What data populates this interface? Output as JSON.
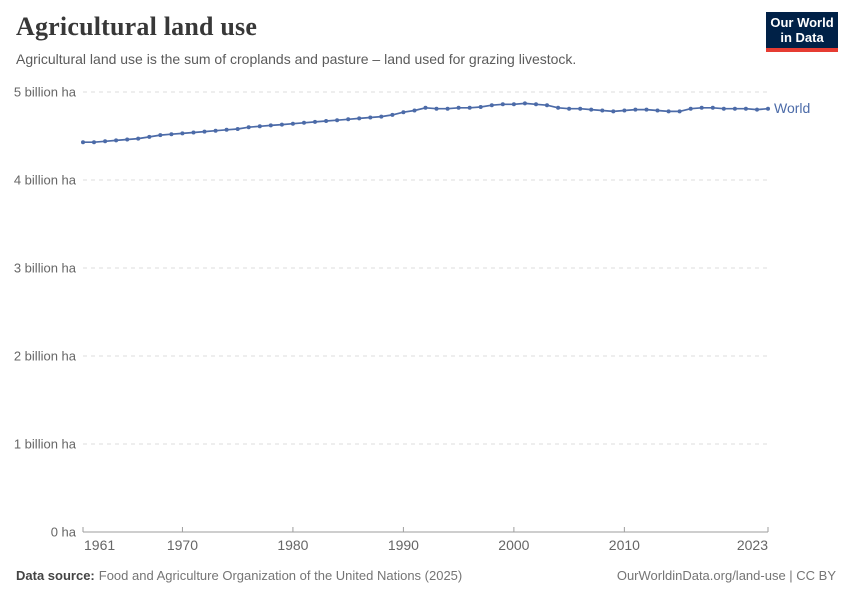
{
  "header": {
    "title": "Agricultural land use",
    "subtitle": "Agricultural land use is the sum of croplands and pasture – land used for grazing livestock.",
    "logo": {
      "line1": "Our World",
      "line2": "in Data",
      "bg_color": "#002147",
      "stripe_color": "#e63c32"
    }
  },
  "chart_data": {
    "type": "line",
    "title": "Agricultural land use",
    "xlabel": "",
    "ylabel": "",
    "unit": "billion ha",
    "ylim": [
      0,
      5
    ],
    "grid": "horizontal-dashed",
    "legend_position": "end-of-line",
    "x": [
      1961,
      1962,
      1963,
      1964,
      1965,
      1966,
      1967,
      1968,
      1969,
      1970,
      1971,
      1972,
      1973,
      1974,
      1975,
      1976,
      1977,
      1978,
      1979,
      1980,
      1981,
      1982,
      1983,
      1984,
      1985,
      1986,
      1987,
      1988,
      1989,
      1990,
      1991,
      1992,
      1993,
      1994,
      1995,
      1996,
      1997,
      1998,
      1999,
      2000,
      2001,
      2002,
      2003,
      2004,
      2005,
      2006,
      2007,
      2008,
      2009,
      2010,
      2011,
      2012,
      2013,
      2014,
      2015,
      2016,
      2017,
      2018,
      2019,
      2020,
      2021,
      2022,
      2023
    ],
    "series": [
      {
        "name": "World",
        "color": "#4c6ba8",
        "values": [
          4.43,
          4.43,
          4.44,
          4.45,
          4.46,
          4.47,
          4.49,
          4.51,
          4.52,
          4.53,
          4.54,
          4.55,
          4.56,
          4.57,
          4.58,
          4.6,
          4.61,
          4.62,
          4.63,
          4.64,
          4.65,
          4.66,
          4.67,
          4.68,
          4.69,
          4.7,
          4.71,
          4.72,
          4.74,
          4.77,
          4.79,
          4.82,
          4.81,
          4.81,
          4.82,
          4.82,
          4.83,
          4.85,
          4.86,
          4.86,
          4.87,
          4.86,
          4.85,
          4.82,
          4.81,
          4.81,
          4.8,
          4.79,
          4.78,
          4.79,
          4.8,
          4.8,
          4.79,
          4.78,
          4.78,
          4.81,
          4.82,
          4.82,
          4.81,
          4.81,
          4.81,
          4.8,
          4.81
        ]
      }
    ],
    "yticks": [
      {
        "value": 0,
        "label": "0 ha"
      },
      {
        "value": 1,
        "label": "1 billion ha"
      },
      {
        "value": 2,
        "label": "2 billion ha"
      },
      {
        "value": 3,
        "label": "3 billion ha"
      },
      {
        "value": 4,
        "label": "4 billion ha"
      },
      {
        "value": 5,
        "label": "5 billion ha"
      }
    ],
    "xticks": [
      1961,
      1970,
      1980,
      1990,
      2000,
      2010,
      2023
    ],
    "axis_colors": {
      "grid": "#dcdcdc",
      "axis_line": "#9e9e9e",
      "tick_text": "#666666"
    }
  },
  "footer": {
    "source_label": "Data source:",
    "source_text": "Food and Agriculture Organization of the United Nations (2025)",
    "credit": "OurWorldinData.org/land-use | CC BY"
  }
}
